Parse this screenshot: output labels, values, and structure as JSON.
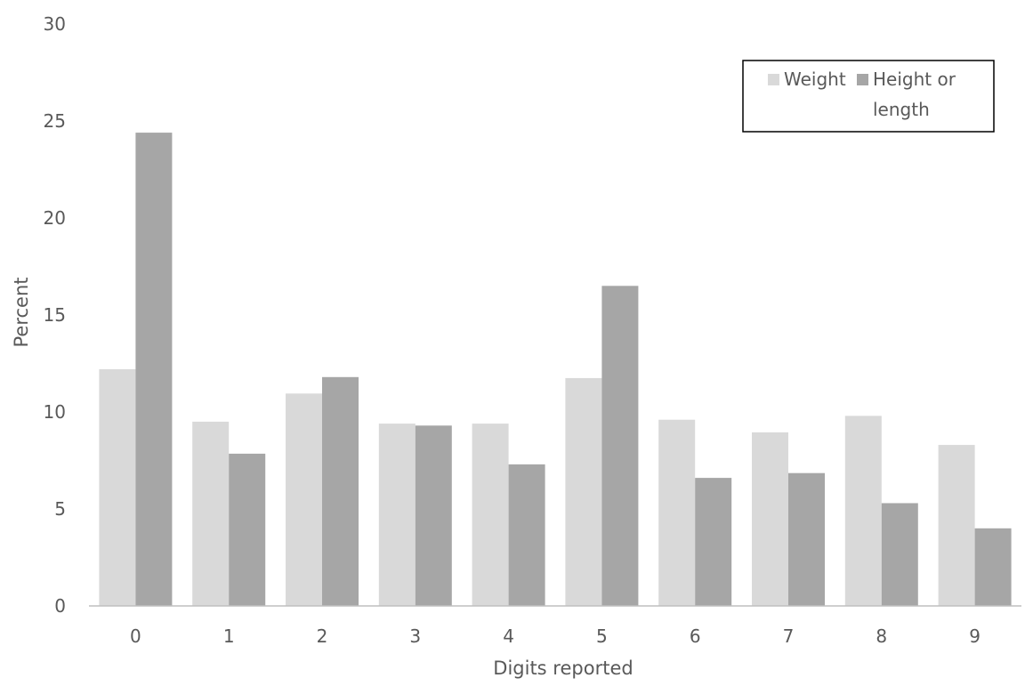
{
  "chart_data": {
    "type": "bar",
    "title": "",
    "xlabel": "Digits reported",
    "ylabel": "Percent",
    "categories": [
      "0",
      "1",
      "2",
      "3",
      "4",
      "5",
      "6",
      "7",
      "8",
      "9"
    ],
    "series": [
      {
        "name": "Weight",
        "color": "#d9d9d9",
        "values": [
          12.2,
          9.5,
          10.95,
          9.4,
          9.4,
          11.75,
          9.6,
          8.95,
          9.8,
          8.3
        ]
      },
      {
        "name": "Height or length",
        "color": "#a6a6a6",
        "values": [
          24.4,
          7.85,
          11.8,
          9.3,
          7.3,
          16.5,
          6.6,
          6.85,
          5.3,
          4.0
        ]
      }
    ],
    "ylim": [
      0,
      30
    ],
    "yticks": [
      "0",
      "5",
      "10",
      "15",
      "20",
      "25",
      "30"
    ],
    "grid": false,
    "legend": {
      "position": "top-right",
      "items": [
        "Weight",
        "Height or",
        "length"
      ]
    }
  }
}
